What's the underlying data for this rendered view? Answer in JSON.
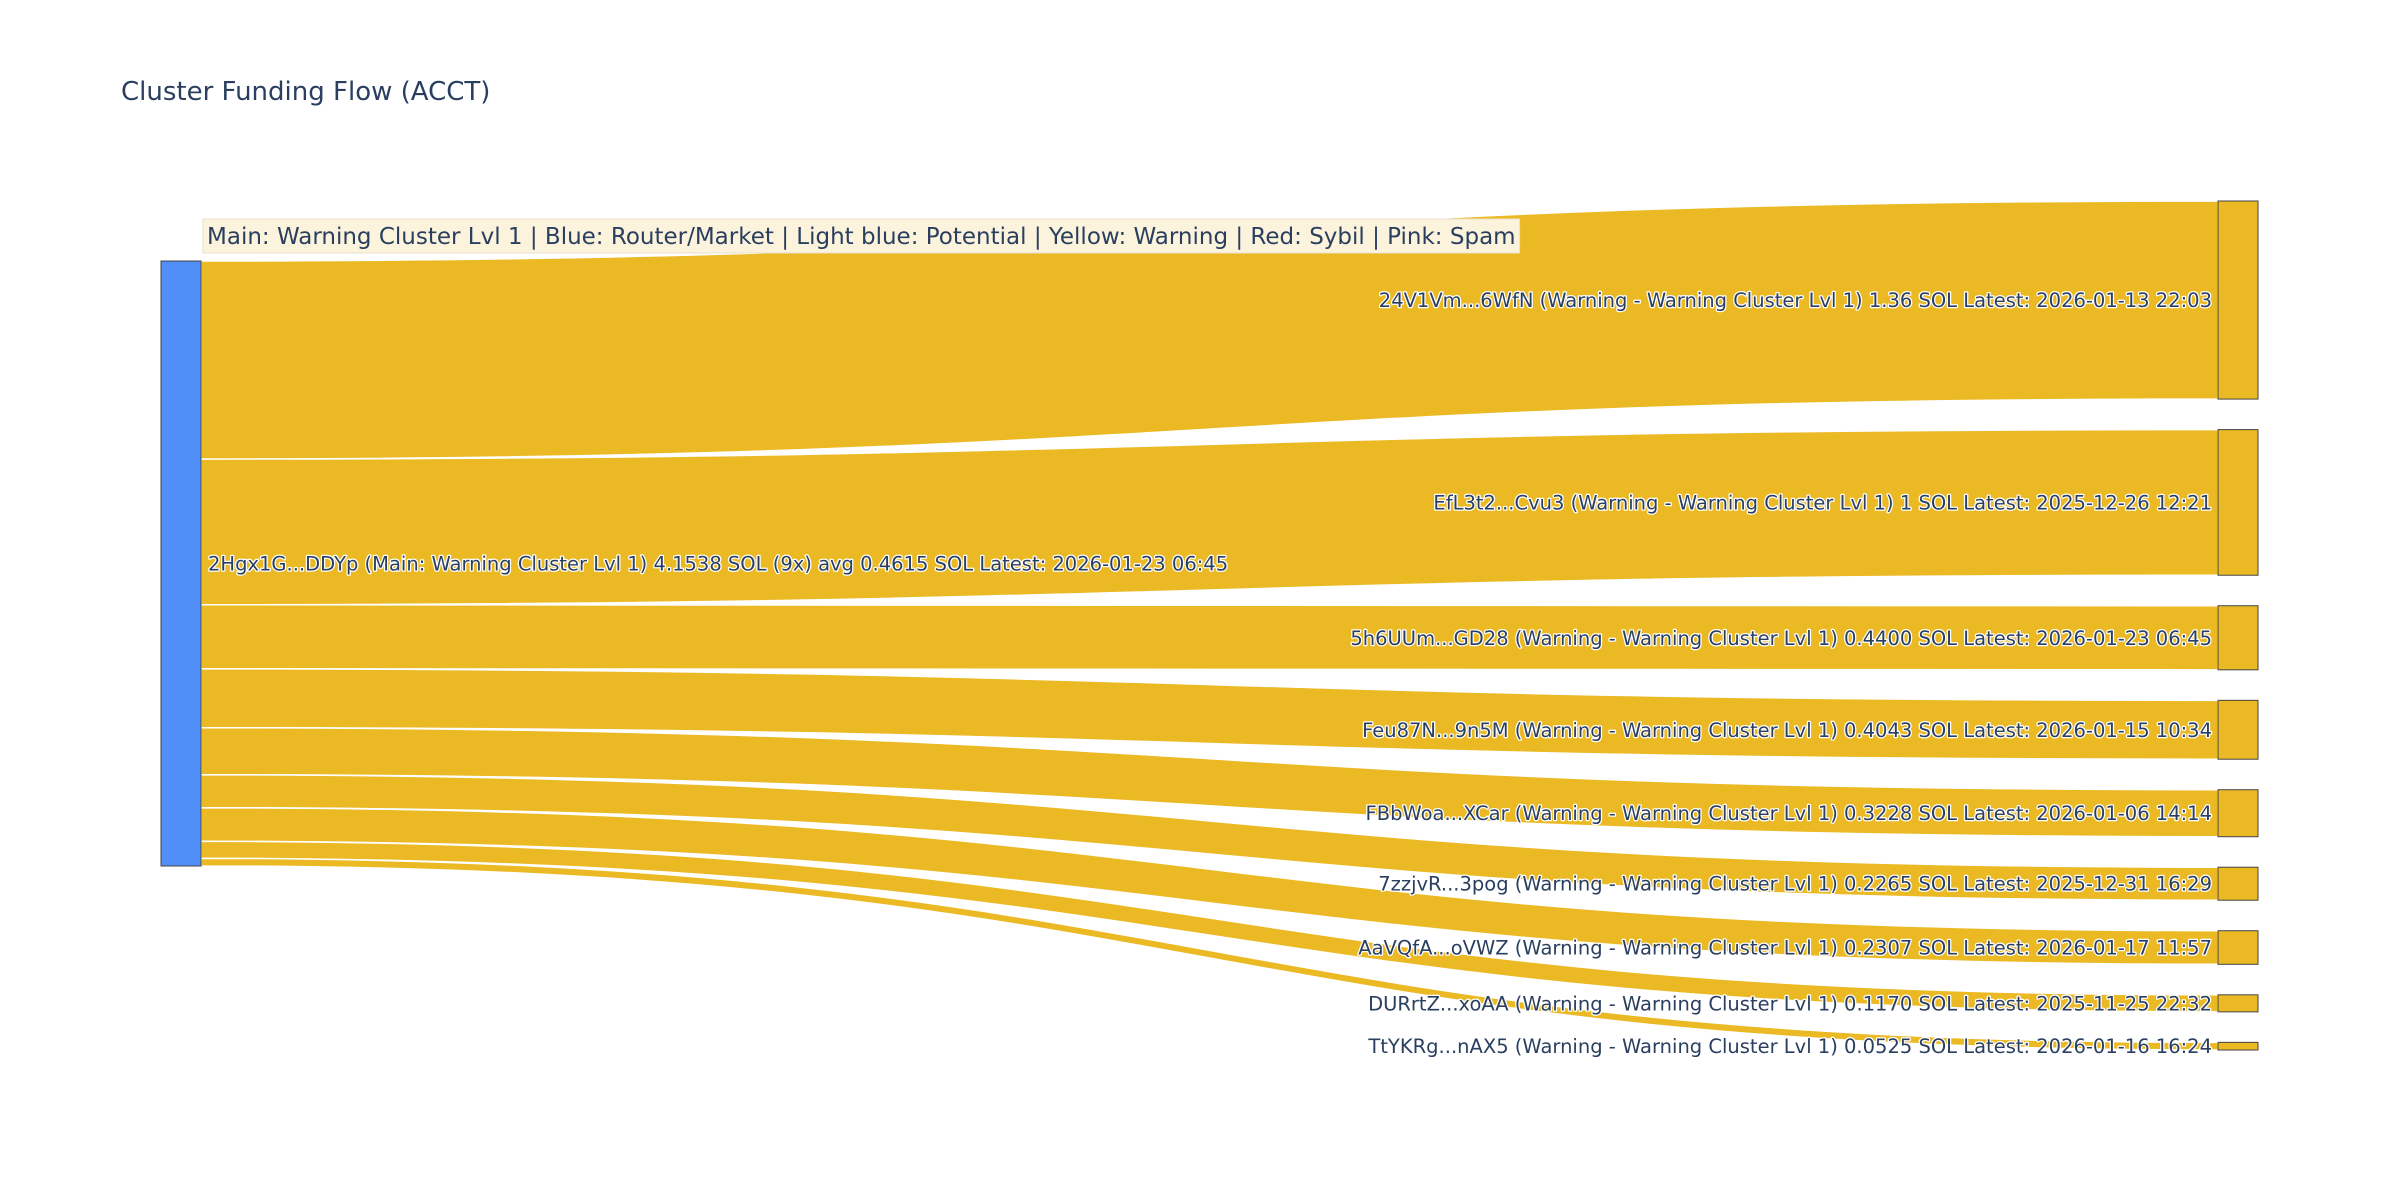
{
  "chart_data": {
    "type": "sankey",
    "title": "Cluster Funding Flow (ACCT)",
    "legend_note": "Main: Warning Cluster Lvl 1  |  Blue: Router/Market | Light blue: Potential | Yellow: Warning | Red: Sybil | Pink: Spam",
    "colors": {
      "source_node": "#4f8ff7",
      "target_node": "#ebb923",
      "link": "#ebb923",
      "node_border": "#444444",
      "legend_bg": "#fbf3dc",
      "text": "#2a3f5f"
    },
    "source": {
      "label": "2Hgx1G...DDYp (Main: Warning Cluster Lvl 1) 4.1538 SOL (9x) avg 0.4615 SOL Latest: 2026-01-23 06:45",
      "value": 4.1538
    },
    "targets": [
      {
        "label": "24V1Vm...6WfN (Warning - Warning Cluster Lvl 1) 1.36 SOL Latest: 2026-01-13 22:03",
        "value": 1.36
      },
      {
        "label": "EfL3t2...Cvu3 (Warning - Warning Cluster Lvl 1) 1 SOL Latest: 2025-12-26 12:21",
        "value": 1.0
      },
      {
        "label": "5h6UUm...GD28 (Warning - Warning Cluster Lvl 1) 0.4400 SOL Latest: 2026-01-23 06:45",
        "value": 0.44
      },
      {
        "label": "Feu87N...9n5M (Warning - Warning Cluster Lvl 1) 0.4043 SOL Latest: 2026-01-15 10:34",
        "value": 0.4043
      },
      {
        "label": "FBbWoa...XCar (Warning - Warning Cluster Lvl 1) 0.3228 SOL Latest: 2026-01-06 14:14",
        "value": 0.3228
      },
      {
        "label": "7zzjvR...3pog (Warning - Warning Cluster Lvl 1) 0.2265 SOL Latest: 2025-12-31 16:29",
        "value": 0.2265
      },
      {
        "label": "AaVQfA...oVWZ (Warning - Warning Cluster Lvl 1) 0.2307 SOL Latest: 2026-01-17 11:57",
        "value": 0.2307
      },
      {
        "label": "DURrtZ...xoAA (Warning - Warning Cluster Lvl 1) 0.1170 SOL Latest: 2025-11-25 22:32",
        "value": 0.117
      },
      {
        "label": "TtYKRg...nAX5 (Warning - Warning Cluster Lvl 1) 0.0525 SOL Latest: 2026-01-16 16:24",
        "value": 0.0525
      }
    ]
  }
}
